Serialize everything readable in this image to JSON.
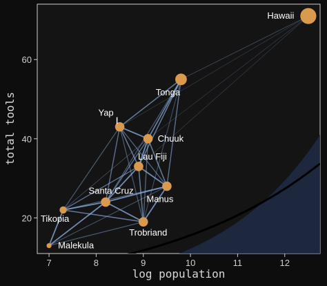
{
  "chart_data": {
    "type": "scatter",
    "xlabel": "log population",
    "ylabel": "total tools",
    "xlim": [
      6.75,
      12.75
    ],
    "ylim": [
      11,
      74
    ],
    "x_ticks": [
      7,
      8,
      9,
      10,
      11,
      12
    ],
    "y_ticks": [
      20,
      40,
      60
    ],
    "x_tick_labels": [
      "7",
      "8",
      "9",
      "10",
      "11",
      "12"
    ],
    "y_tick_labels": [
      "20",
      "40",
      "60"
    ],
    "grid": false,
    "colors": {
      "background": "#0d0d0d",
      "panel": "#141414",
      "point": "#d99a4e",
      "edge": "#8fb4e8",
      "band": "#1f2a45",
      "curve": "#000000"
    },
    "points": [
      {
        "name": "Malekula",
        "x": 7.0,
        "y": 13,
        "size": 1
      },
      {
        "name": "Tikopia",
        "x": 7.3,
        "y": 22,
        "size": 2
      },
      {
        "name": "Santa Cruz",
        "x": 8.2,
        "y": 24,
        "size": 3
      },
      {
        "name": "Yap",
        "x": 8.5,
        "y": 43,
        "size": 3
      },
      {
        "name": "Lau Fiji",
        "x": 8.9,
        "y": 33,
        "size": 3
      },
      {
        "name": "Trobriand",
        "x": 9.0,
        "y": 19,
        "size": 3
      },
      {
        "name": "Chuuk",
        "x": 9.1,
        "y": 40,
        "size": 3
      },
      {
        "name": "Manus",
        "x": 9.5,
        "y": 28,
        "size": 3
      },
      {
        "name": "Tonga",
        "x": 9.8,
        "y": 55,
        "size": 4
      },
      {
        "name": "Hawaii",
        "x": 12.5,
        "y": 71,
        "size": 6
      }
    ],
    "edges": [
      [
        "Malekula",
        "Tikopia",
        1
      ],
      [
        "Malekula",
        "Santa Cruz",
        1
      ],
      [
        "Malekula",
        "Trobriand",
        0.5
      ],
      [
        "Malekula",
        "Manus",
        0.4
      ],
      [
        "Tikopia",
        "Santa Cruz",
        1
      ],
      [
        "Tikopia",
        "Trobriand",
        0.8
      ],
      [
        "Tikopia",
        "Yap",
        0.5
      ],
      [
        "Tikopia",
        "Lau Fiji",
        0.7
      ],
      [
        "Tikopia",
        "Manus",
        0.5
      ],
      [
        "Tikopia",
        "Chuuk",
        0.3
      ],
      [
        "Santa Cruz",
        "Trobriand",
        1
      ],
      [
        "Santa Cruz",
        "Manus",
        1
      ],
      [
        "Santa Cruz",
        "Lau Fiji",
        1
      ],
      [
        "Santa Cruz",
        "Yap",
        0.7
      ],
      [
        "Santa Cruz",
        "Chuuk",
        0.7
      ],
      [
        "Santa Cruz",
        "Tonga",
        0.5
      ],
      [
        "Yap",
        "Chuuk",
        1
      ],
      [
        "Yap",
        "Lau Fiji",
        0.8
      ],
      [
        "Yap",
        "Tonga",
        0.8
      ],
      [
        "Yap",
        "Manus",
        0.6
      ],
      [
        "Yap",
        "Trobriand",
        0.5
      ],
      [
        "Lau Fiji",
        "Chuuk",
        1
      ],
      [
        "Lau Fiji",
        "Tonga",
        0.8
      ],
      [
        "Lau Fiji",
        "Manus",
        1
      ],
      [
        "Lau Fiji",
        "Trobriand",
        0.8
      ],
      [
        "Trobriand",
        "Manus",
        1
      ],
      [
        "Trobriand",
        "Chuuk",
        0.6
      ],
      [
        "Trobriand",
        "Tonga",
        0.4
      ],
      [
        "Chuuk",
        "Tonga",
        0.9
      ],
      [
        "Chuuk",
        "Manus",
        0.8
      ],
      [
        "Manus",
        "Tonga",
        0.7
      ],
      [
        "Tonga",
        "Hawaii",
        0.3
      ],
      [
        "Lau Fiji",
        "Hawaii",
        0.15
      ],
      [
        "Yap",
        "Hawaii",
        0.15
      ],
      [
        "Chuuk",
        "Hawaii",
        0.15
      ]
    ],
    "fit_curve": {
      "a": 0.95,
      "b": 0.28,
      "label": ""
    },
    "band": {
      "low_b": 0.14,
      "low_a": 1.75,
      "high_b": 0.44,
      "high_a": 0.15
    }
  }
}
